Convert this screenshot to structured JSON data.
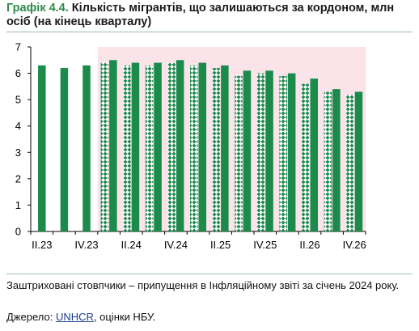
{
  "header": {
    "title_lead": "Графік 4.4.",
    "title_rest": " Кількість мігрантів, що залишаються за кордоном, млн осіб (на кінець кварталу)"
  },
  "footer": {
    "note": "Заштриховані стовпчики – припущення в Інфляційному звіті за січень 2024 року.",
    "source_prefix": "Джерело: ",
    "source_link": "UNHCR",
    "source_suffix": ", оцінки НБУ."
  },
  "colors": {
    "bar": "#1b8a4b",
    "hatched_bar": "#1b8a4b",
    "forecast_shade": "#fbe3ea",
    "title_accent": "#2e8b4a"
  },
  "chart_data": {
    "type": "bar",
    "title": "Кількість мігрантів, що залишаються за кордоном, млн осіб (на кінець кварталу)",
    "xlabel": "",
    "ylabel": "",
    "ylim": [
      0,
      7
    ],
    "yticks": [
      0,
      1,
      2,
      3,
      4,
      5,
      6,
      7
    ],
    "grid": false,
    "legend": "none",
    "forecast_shaded_from": "I.24",
    "categories": [
      "II.23",
      "III.23",
      "IV.23",
      "I.24",
      "II.24",
      "III.24",
      "IV.24",
      "I.25",
      "II.25",
      "III.25",
      "IV.25",
      "I.26",
      "II.26",
      "III.26",
      "IV.26"
    ],
    "tick_labels": [
      "II.23",
      "IV.23",
      "II.24",
      "IV.24",
      "II.25",
      "IV.25",
      "II.26",
      "IV.26"
    ],
    "series": [
      {
        "values": [
          null,
          null,
          null,
          6.4,
          6.3,
          6.3,
          6.4,
          6.3,
          6.2,
          5.9,
          6.0,
          5.9,
          5.6,
          5.3,
          5.2
        ]
      },
      {
        "values": [
          6.3,
          6.2,
          6.3,
          6.5,
          6.4,
          6.4,
          6.5,
          6.4,
          6.3,
          6.1,
          6.1,
          6.0,
          5.8,
          5.4,
          5.3
        ]
      }
    ]
  }
}
